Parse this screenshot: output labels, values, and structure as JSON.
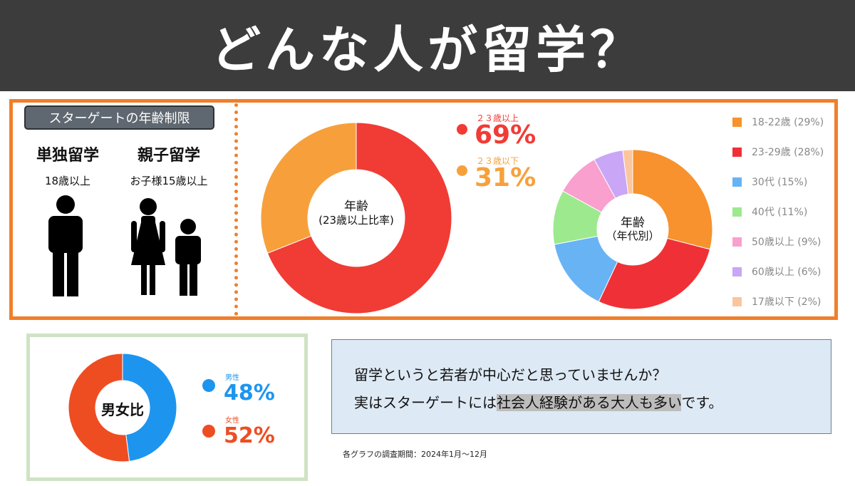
{
  "header": {
    "title": "どんな人が留学？"
  },
  "target_section": {
    "badge": "スターゲートの年齢制限",
    "solo": {
      "title": "単独留学",
      "condition": "18歳以上"
    },
    "family": {
      "title": "親子留学",
      "condition": "お子様15歳以上"
    }
  },
  "chart_data": [
    {
      "type": "pie",
      "center_label_1": "年齢",
      "center_label_2": "(23歳以上比率)",
      "slices": [
        {
          "label": "２３歳以上",
          "value": 69,
          "display": "69%",
          "color": "#f13b35"
        },
        {
          "label": "２３歳以下",
          "value": 31,
          "display": "31%",
          "color": "#f7a03b"
        }
      ]
    },
    {
      "type": "pie",
      "center_label_1": "年齢",
      "center_label_2": "（年代別）",
      "slices": [
        {
          "label": "18-22歳 (29%)",
          "value": 29,
          "color": "#f7922e"
        },
        {
          "label": "23-29歳 (28%)",
          "value": 28,
          "color": "#ef3137"
        },
        {
          "label": "30代 (15%)",
          "value": 15,
          "color": "#68b3f4"
        },
        {
          "label": "40代 (11%)",
          "value": 11,
          "color": "#9de98e"
        },
        {
          "label": "50歳以上 (9%)",
          "value": 9,
          "color": "#f9a0ce"
        },
        {
          "label": "60歳以上 (6%)",
          "value": 6,
          "color": "#c9a6f6"
        },
        {
          "label": "17歳以下 (2%)",
          "value": 2,
          "color": "#fbc69d"
        }
      ]
    },
    {
      "type": "pie",
      "center_label_1": "男女比",
      "slices": [
        {
          "label": "男性",
          "value": 48,
          "display": "48%",
          "color": "#1d95ef"
        },
        {
          "label": "女性",
          "value": 52,
          "display": "52%",
          "color": "#ee4d22"
        }
      ]
    }
  ],
  "message": {
    "line1": "留学というと若者が中心だと思っていませんか？",
    "line2_pre": "実はスターゲートには",
    "line2_highlight": "社会人経験がある大人も多い",
    "line2_post": "です。"
  },
  "footnote": "各グラフの調査期間：2024年1月～12月"
}
